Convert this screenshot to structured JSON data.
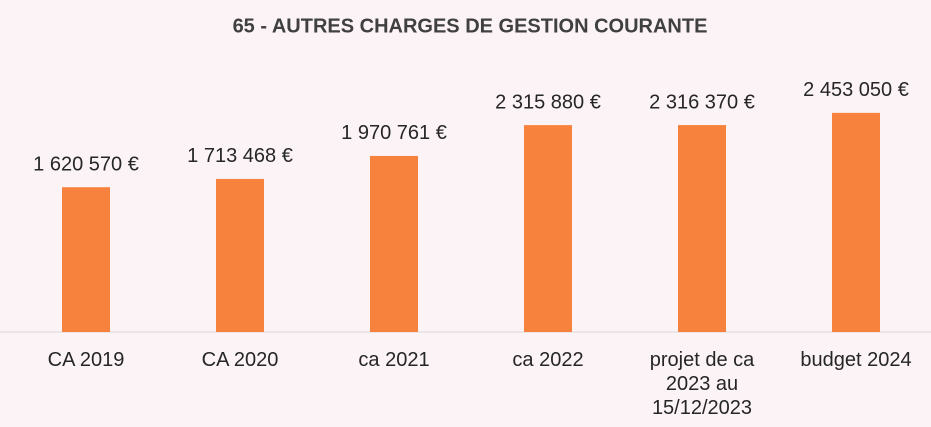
{
  "chart_data": {
    "type": "bar",
    "title": "65 - AUTRES CHARGES DE GESTION COURANTE",
    "categories": [
      "CA 2019",
      "CA 2020",
      "ca 2021",
      "ca 2022",
      "projet de ca 2023 au 15/12/2023",
      "budget 2024"
    ],
    "values": [
      1620570,
      1713468,
      1970761,
      2315880,
      2316370,
      2453050
    ],
    "value_labels": [
      "1 620 570 €",
      "1 713 468 €",
      "1 970 761 €",
      "2 315 880 €",
      "2 316 370 €",
      "2 453 050 €"
    ],
    "color": "#f7823d",
    "ylim": [
      0,
      3000000
    ]
  }
}
